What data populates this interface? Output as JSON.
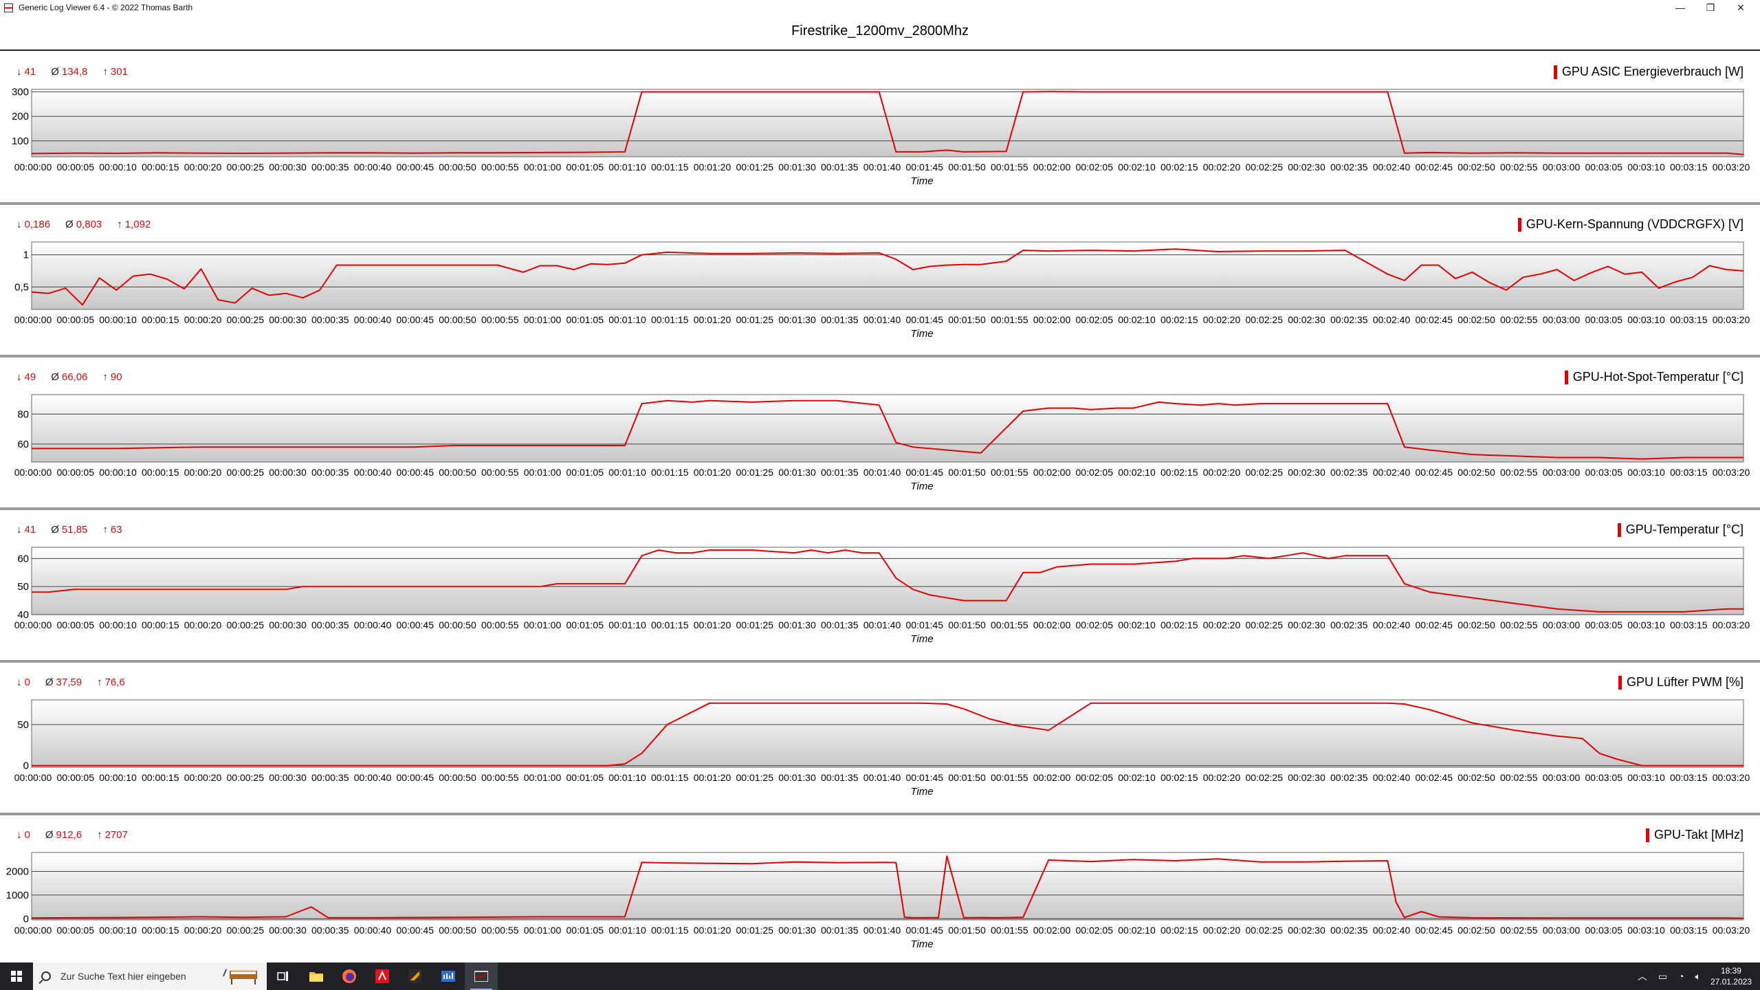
{
  "window": {
    "title": "Generic Log Viewer 6.4 - © 2022 Thomas Barth",
    "minimize": "—",
    "maximize": "❐",
    "close": "✕"
  },
  "page_title": "Firestrike_1200mv_2800Mhz",
  "x_ticks": [
    "00:00:00",
    "00:00:05",
    "00:00:10",
    "00:00:15",
    "00:00:20",
    "00:00:25",
    "00:00:30",
    "00:00:35",
    "00:00:40",
    "00:00:45",
    "00:00:50",
    "00:00:55",
    "00:01:00",
    "00:01:05",
    "00:01:10",
    "00:01:15",
    "00:01:20",
    "00:01:25",
    "00:01:30",
    "00:01:35",
    "00:01:40",
    "00:01:45",
    "00:01:50",
    "00:01:55",
    "00:02:00",
    "00:02:05",
    "00:02:10",
    "00:02:15",
    "00:02:20",
    "00:02:25",
    "00:02:30",
    "00:02:35",
    "00:02:40",
    "00:02:45",
    "00:02:50",
    "00:02:55",
    "00:03:00",
    "00:03:05",
    "00:03:10",
    "00:03:15",
    "00:03:20"
  ],
  "line_color": "#e00000",
  "chart_data": [
    {
      "type": "line",
      "title": "GPU ASIC Energieverbrauch [W]",
      "xlabel": "Time",
      "stats": {
        "min": "41",
        "avg": "134,8",
        "max": "301"
      },
      "ylim": [
        35,
        310
      ],
      "yticks": [
        {
          "v": 300,
          "l": "300"
        },
        {
          "v": 200,
          "l": "200"
        },
        {
          "v": 100,
          "l": "100"
        }
      ],
      "x": [
        0,
        5,
        10,
        15,
        20,
        25,
        30,
        35,
        40,
        45,
        50,
        55,
        60,
        65,
        70,
        72,
        75,
        80,
        85,
        90,
        95,
        100,
        102,
        105,
        108,
        110,
        115,
        117,
        120,
        125,
        130,
        135,
        140,
        145,
        150,
        155,
        160,
        162,
        165,
        170,
        175,
        180,
        185,
        190,
        195,
        200,
        202
      ],
      "values": [
        48,
        50,
        49,
        51,
        50,
        49,
        50,
        51,
        51,
        50,
        51,
        51,
        52,
        53,
        55,
        300,
        300,
        300,
        300,
        300,
        300,
        300,
        55,
        55,
        62,
        55,
        57,
        300,
        301,
        300,
        300,
        300,
        300,
        300,
        300,
        300,
        300,
        50,
        52,
        50,
        51,
        50,
        50,
        50,
        50,
        50,
        44
      ]
    },
    {
      "type": "line",
      "title": "GPU-Kern-Spannung (VDDCRGFX) [V]",
      "xlabel": "Time",
      "stats": {
        "min": "0,186",
        "avg": "0,803",
        "max": "1,092"
      },
      "ylim": [
        0.15,
        1.2
      ],
      "yticks": [
        {
          "v": 1,
          "l": "1"
        },
        {
          "v": 0.5,
          "l": "0,5"
        }
      ],
      "x": [
        0,
        2,
        4,
        6,
        8,
        10,
        12,
        14,
        16,
        18,
        20,
        22,
        24,
        26,
        28,
        30,
        32,
        34,
        36,
        40,
        45,
        50,
        55,
        58,
        60,
        62,
        64,
        66,
        68,
        70,
        72,
        75,
        80,
        85,
        90,
        95,
        100,
        102,
        104,
        106,
        108,
        110,
        112,
        115,
        117,
        120,
        125,
        130,
        135,
        140,
        145,
        150,
        155,
        160,
        162,
        164,
        166,
        168,
        170,
        172,
        174,
        176,
        178,
        180,
        182,
        184,
        186,
        188,
        190,
        192,
        194,
        196,
        198,
        200,
        202
      ],
      "values": [
        0.42,
        0.4,
        0.48,
        0.22,
        0.64,
        0.45,
        0.67,
        0.7,
        0.62,
        0.47,
        0.78,
        0.3,
        0.25,
        0.48,
        0.37,
        0.4,
        0.33,
        0.45,
        0.84,
        0.84,
        0.84,
        0.84,
        0.84,
        0.73,
        0.83,
        0.83,
        0.77,
        0.86,
        0.85,
        0.87,
        1,
        1.04,
        1.02,
        1.02,
        1.03,
        1.02,
        1.03,
        0.93,
        0.77,
        0.82,
        0.84,
        0.85,
        0.85,
        0.9,
        1.07,
        1.06,
        1.07,
        1.06,
        1.09,
        1.05,
        1.06,
        1.06,
        1.07,
        0.7,
        0.6,
        0.84,
        0.84,
        0.63,
        0.73,
        0.57,
        0.45,
        0.65,
        0.7,
        0.77,
        0.6,
        0.72,
        0.82,
        0.7,
        0.73,
        0.48,
        0.58,
        0.65,
        0.83,
        0.77,
        0.75
      ]
    },
    {
      "type": "line",
      "title": "GPU-Hot-Spot-Temperatur [°C]",
      "xlabel": "Time",
      "stats": {
        "min": "49",
        "avg": "66,06",
        "max": "90"
      },
      "ylim": [
        48,
        93
      ],
      "yticks": [
        {
          "v": 80,
          "l": "80"
        },
        {
          "v": 60,
          "l": "60"
        }
      ],
      "x": [
        0,
        10,
        20,
        25,
        30,
        40,
        45,
        50,
        55,
        60,
        65,
        70,
        72,
        75,
        78,
        80,
        85,
        90,
        95,
        100,
        102,
        104,
        108,
        112,
        117,
        120,
        123,
        125,
        128,
        130,
        133,
        135,
        138,
        140,
        142,
        145,
        148,
        150,
        155,
        160,
        162,
        165,
        170,
        175,
        180,
        185,
        190,
        195,
        200,
        202
      ],
      "values": [
        57,
        57,
        58,
        58,
        58,
        58,
        58,
        59,
        59,
        59,
        59,
        59,
        87,
        89,
        88,
        89,
        88,
        89,
        89,
        86,
        61,
        58,
        56,
        54,
        82,
        84,
        84,
        83,
        84,
        84,
        88,
        87,
        86,
        87,
        86,
        87,
        87,
        87,
        87,
        87,
        58,
        56,
        53,
        52,
        51,
        51,
        50,
        51,
        51,
        51
      ]
    },
    {
      "type": "line",
      "title": "GPU-Temperatur [°C]",
      "xlabel": "Time",
      "stats": {
        "min": "41",
        "avg": "51,85",
        "max": "63"
      },
      "ylim": [
        40,
        64
      ],
      "yticks": [
        {
          "v": 60,
          "l": "60"
        },
        {
          "v": 50,
          "l": "50"
        },
        {
          "v": 40,
          "l": "40"
        }
      ],
      "x": [
        0,
        2,
        5,
        10,
        20,
        30,
        32,
        40,
        50,
        60,
        62,
        65,
        70,
        72,
        74,
        76,
        78,
        80,
        85,
        90,
        92,
        94,
        96,
        98,
        100,
        102,
        104,
        106,
        110,
        115,
        117,
        119,
        121,
        125,
        130,
        135,
        137,
        139,
        141,
        143,
        146,
        148,
        150,
        153,
        155,
        160,
        162,
        165,
        170,
        175,
        180,
        185,
        190,
        195,
        200,
        202
      ],
      "values": [
        48,
        48,
        49,
        49,
        49,
        49,
        50,
        50,
        50,
        50,
        51,
        51,
        51,
        61,
        63,
        62,
        62,
        63,
        63,
        62,
        63,
        62,
        63,
        62,
        62,
        53,
        49,
        47,
        45,
        45,
        55,
        55,
        57,
        58,
        58,
        59,
        60,
        60,
        60,
        61,
        60,
        61,
        62,
        60,
        61,
        61,
        51,
        48,
        46,
        44,
        42,
        41,
        41,
        41,
        42,
        42
      ]
    },
    {
      "type": "line",
      "title": "GPU Lüfter PWM [%]",
      "xlabel": "Time",
      "stats": {
        "min": "0",
        "avg": "37,59",
        "max": "76,6"
      },
      "ylim": [
        -2,
        80
      ],
      "yticks": [
        {
          "v": 50,
          "l": "50"
        },
        {
          "v": 0,
          "l": "0"
        }
      ],
      "x": [
        0,
        20,
        40,
        60,
        68,
        70,
        72,
        75,
        80,
        90,
        100,
        105,
        108,
        110,
        113,
        116,
        120,
        125,
        130,
        140,
        150,
        160,
        162,
        165,
        170,
        175,
        180,
        183,
        185,
        187,
        190,
        200,
        202
      ],
      "values": [
        0,
        0,
        0,
        0,
        0,
        2,
        15,
        50,
        76,
        76,
        76,
        76,
        75,
        69,
        57,
        49,
        43,
        76,
        76,
        76,
        76,
        76,
        75,
        68,
        52,
        43,
        36,
        33,
        15,
        8,
        0,
        0,
        0
      ]
    },
    {
      "type": "line",
      "title": "GPU-Takt [MHz]",
      "xlabel": "Time",
      "stats": {
        "min": "0",
        "avg": "912,6",
        "max": "2707"
      },
      "ylim": [
        -50,
        2800
      ],
      "yticks": [
        {
          "v": 2000,
          "l": "2000"
        },
        {
          "v": 1000,
          "l": "1000"
        },
        {
          "v": 0,
          "l": "0"
        }
      ],
      "x": [
        0,
        10,
        20,
        25,
        30,
        33,
        35,
        40,
        50,
        60,
        62,
        65,
        68,
        70,
        72,
        75,
        80,
        85,
        90,
        95,
        100,
        101,
        102,
        103,
        104,
        105,
        107,
        108,
        110,
        112,
        114,
        117,
        120,
        125,
        130,
        135,
        140,
        145,
        150,
        155,
        160,
        161,
        162,
        164,
        166,
        168,
        170,
        180,
        190,
        200,
        202
      ],
      "values": [
        30,
        50,
        80,
        60,
        80,
        500,
        40,
        40,
        60,
        80,
        80,
        80,
        80,
        80,
        2380,
        2360,
        2340,
        2330,
        2400,
        2370,
        2380,
        2380,
        2370,
        60,
        40,
        40,
        50,
        2650,
        40,
        50,
        40,
        60,
        2480,
        2420,
        2500,
        2450,
        2530,
        2400,
        2400,
        2430,
        2450,
        700,
        50,
        300,
        80,
        60,
        40,
        30,
        30,
        30,
        20
      ]
    }
  ]
}
